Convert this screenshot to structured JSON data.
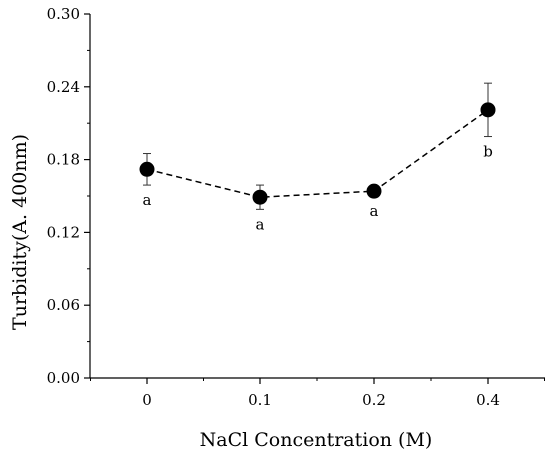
{
  "chart_data": {
    "type": "line",
    "categories": [
      "0",
      "0.1",
      "0.2",
      "0.4"
    ],
    "values": [
      0.172,
      0.149,
      0.154,
      0.221
    ],
    "errors": [
      0.013,
      0.01,
      0.004,
      0.022
    ],
    "significance": [
      "a",
      "a",
      "a",
      "b"
    ],
    "xlabel": "NaCl Concentration (M)",
    "ylabel": "Turbidity(A. 400nm)",
    "ylim": [
      0,
      0.3
    ],
    "yticks": [
      "0.00",
      "0.06",
      "0.12",
      "0.18",
      "0.24",
      "0.30"
    ],
    "line_style": "dashed",
    "marker": "filled-circle",
    "grid": false,
    "legend": "none"
  }
}
